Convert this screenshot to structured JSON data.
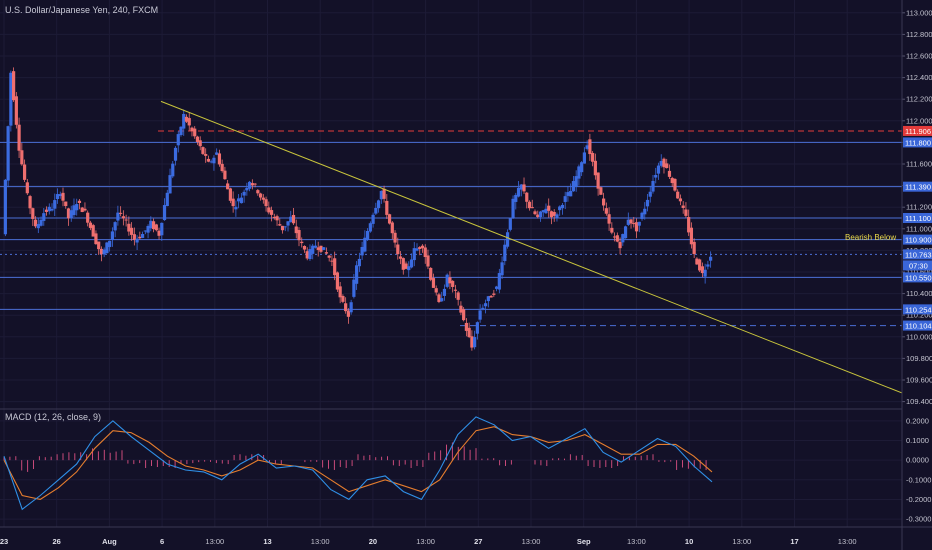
{
  "header": {
    "title": "U.S. Dollar/Japanese Yen, 240, FXCM"
  },
  "macd_label": "MACD (12, 26, close, 9)",
  "annotation": "Bearish Below",
  "colors": {
    "background": "#131128",
    "up_candle": "#3b6be0",
    "down_candle": "#ef6f6f",
    "trendline": "#c8c43c",
    "level_line": "#4b6fd6",
    "resistance_dashed": "#e33b3b",
    "support_dashed": "#4b6fd6",
    "macd_line": "#2f8fe6",
    "signal_line": "#e57d2e",
    "histogram": "#c84a7a"
  },
  "chart_data": [
    {
      "type": "candlestick",
      "title": "U.S. Dollar/Japanese Yen, 240, FXCM",
      "xlabel": "",
      "ylabel": "",
      "x_tick_labels": [
        "23",
        "26",
        "Aug",
        "6",
        "13:00",
        "13",
        "13:00",
        "20",
        "13:00",
        "27",
        "13:00",
        "Sep",
        "13:00",
        "10",
        "13:00",
        "17",
        "13:00"
      ],
      "y_ticks": [
        "113.000",
        "112.800",
        "112.600",
        "112.400",
        "112.200",
        "112.000",
        "111.800",
        "111.600",
        "111.400",
        "111.200",
        "111.000",
        "110.800",
        "110.600",
        "110.400",
        "110.200",
        "110.000",
        "109.800",
        "109.600",
        "109.400"
      ],
      "ylim": [
        109.35,
        113.1
      ],
      "price_series": [
        110.95,
        112.45,
        111.75,
        111.3,
        111.0,
        111.15,
        111.2,
        111.35,
        111.1,
        111.25,
        111.15,
        110.95,
        110.75,
        110.9,
        111.15,
        111.05,
        110.9,
        110.95,
        111.05,
        110.95,
        111.35,
        111.75,
        112.05,
        111.9,
        111.75,
        111.6,
        111.7,
        111.45,
        111.2,
        111.3,
        111.45,
        111.35,
        111.2,
        111.1,
        111.0,
        111.1,
        110.9,
        110.75,
        110.85,
        110.8,
        110.7,
        110.35,
        110.2,
        110.65,
        110.9,
        111.15,
        111.35,
        111.05,
        110.75,
        110.6,
        110.8,
        110.85,
        110.55,
        110.3,
        110.55,
        110.4,
        110.15,
        109.9,
        110.25,
        110.35,
        110.45,
        110.85,
        111.25,
        111.4,
        111.2,
        111.1,
        111.2,
        111.1,
        111.25,
        111.35,
        111.55,
        111.8,
        111.5,
        111.2,
        110.95,
        110.85,
        111.1,
        111.0,
        111.2,
        111.45,
        111.65,
        111.5,
        111.3,
        111.1,
        110.75,
        110.58,
        110.76
      ],
      "levels": [
        {
          "label": "111.906",
          "value": 111.906,
          "style": "dashed",
          "color": "#e33b3b"
        },
        {
          "label": "111.800",
          "value": 111.8,
          "style": "solid",
          "color": "#4b6fd6"
        },
        {
          "label": "111.390",
          "value": 111.39,
          "style": "solid",
          "color": "#4b6fd6"
        },
        {
          "label": "111.100",
          "value": 111.1,
          "style": "solid",
          "color": "#4b6fd6"
        },
        {
          "label": "110.900",
          "value": 110.9,
          "style": "solid",
          "color": "#4b6fd6"
        },
        {
          "label": "110.763",
          "value": 110.763,
          "style": "dotted",
          "color": "#4b6fd6"
        },
        {
          "label": "110.550",
          "value": 110.55,
          "style": "solid",
          "color": "#4b6fd6"
        },
        {
          "label": "110.254",
          "value": 110.254,
          "style": "solid",
          "color": "#4b6fd6"
        },
        {
          "label": "110.104",
          "value": 110.104,
          "style": "dashed",
          "color": "#4b6fd6"
        }
      ],
      "current_price": {
        "label": "110.763",
        "countdown": "07:30"
      },
      "trendline": {
        "from_value": 112.18,
        "to_value": 109.48
      }
    },
    {
      "type": "line",
      "title": "MACD (12, 26, close, 9)",
      "y_ticks": [
        "0.2000",
        "0.1000",
        "0.0000",
        "-0.1000",
        "-0.2000",
        "-0.3000"
      ],
      "ylim": [
        -0.33,
        0.25
      ],
      "series": [
        {
          "name": "MACD",
          "values": [
            0.02,
            -0.25,
            -0.18,
            -0.1,
            -0.02,
            0.12,
            0.2,
            0.12,
            0.05,
            -0.02,
            -0.05,
            -0.06,
            -0.1,
            -0.02,
            0.03,
            -0.04,
            -0.03,
            -0.05,
            -0.15,
            -0.2,
            -0.1,
            -0.08,
            -0.16,
            -0.2,
            -0.05,
            0.13,
            0.22,
            0.18,
            0.1,
            0.12,
            0.06,
            0.11,
            0.16,
            0.04,
            -0.01,
            0.05,
            0.11,
            0.07,
            -0.03,
            -0.11
          ]
        },
        {
          "name": "Signal",
          "values": [
            0.0,
            -0.18,
            -0.2,
            -0.14,
            -0.06,
            0.06,
            0.15,
            0.14,
            0.09,
            0.02,
            -0.03,
            -0.05,
            -0.08,
            -0.05,
            0.0,
            -0.02,
            -0.03,
            -0.04,
            -0.1,
            -0.16,
            -0.13,
            -0.1,
            -0.13,
            -0.16,
            -0.1,
            0.04,
            0.15,
            0.17,
            0.13,
            0.12,
            0.09,
            0.1,
            0.13,
            0.08,
            0.03,
            0.03,
            0.08,
            0.08,
            0.02,
            -0.06
          ]
        }
      ],
      "histogram": [
        0.02,
        -0.06,
        0.02,
        0.04,
        0.04,
        0.06,
        0.05,
        -0.02,
        -0.04,
        -0.04,
        -0.02,
        -0.01,
        -0.02,
        0.03,
        0.03,
        -0.02,
        0.0,
        -0.01,
        -0.05,
        -0.04,
        0.03,
        0.02,
        -0.03,
        -0.04,
        0.05,
        0.09,
        0.07,
        0.01,
        -0.03,
        0.0,
        -0.03,
        0.01,
        0.03,
        -0.04,
        -0.04,
        0.02,
        0.03,
        -0.01,
        -0.05,
        -0.05
      ]
    }
  ]
}
